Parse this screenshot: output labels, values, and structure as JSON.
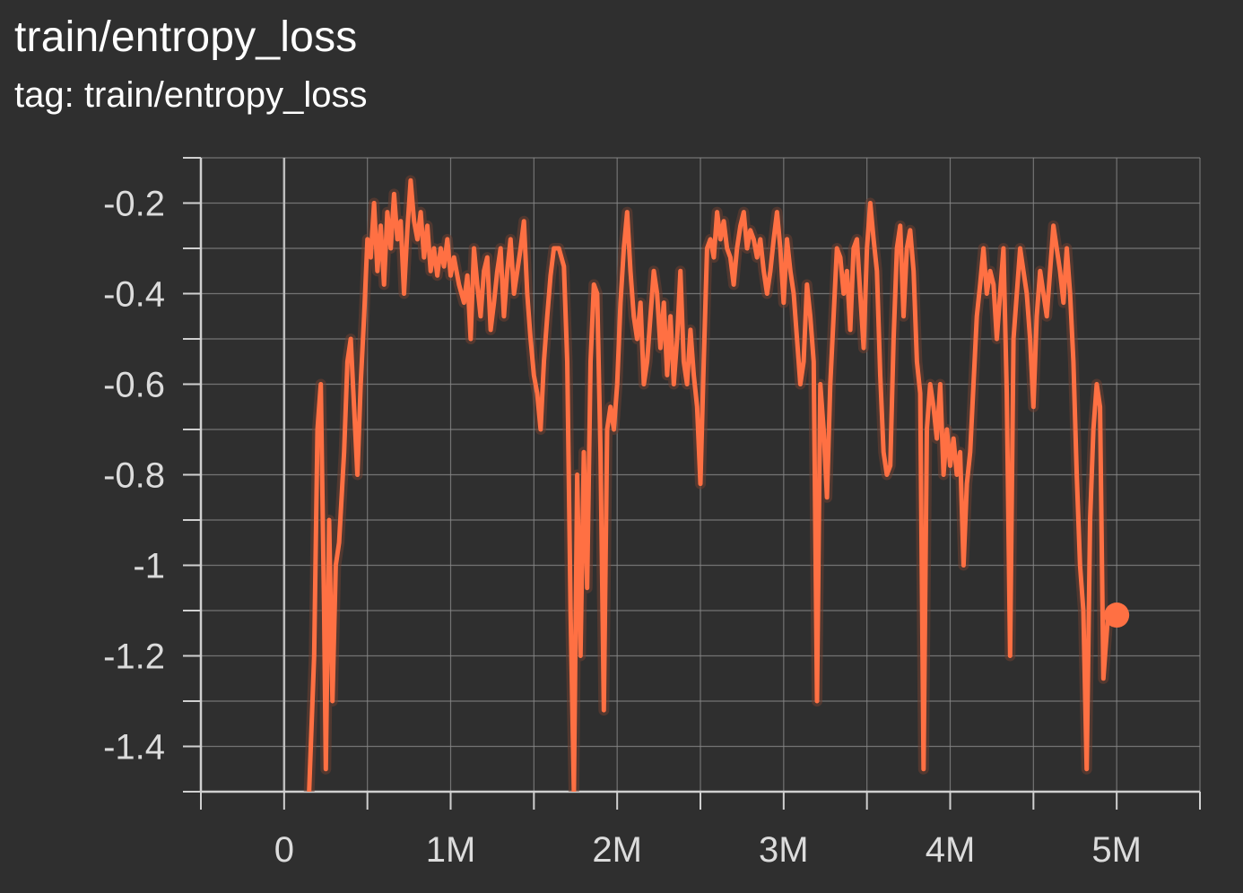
{
  "header": {
    "title": "train/entropy_loss",
    "subtitle": "tag: train/entropy_loss"
  },
  "colors": {
    "background": "#2f2f2f",
    "grid": "#8a8a8a",
    "axis": "#d0d0d0",
    "series": "#ff7043",
    "series_raw": "#6e3f32"
  },
  "chart_data": {
    "type": "line",
    "title": "train/entropy_loss",
    "xlabel": "",
    "ylabel": "",
    "xlim": [
      -500000,
      5500000
    ],
    "ylim": [
      -1.5,
      -0.1
    ],
    "grid": true,
    "x_ticks": [
      0,
      1000000,
      2000000,
      3000000,
      4000000,
      5000000
    ],
    "x_tick_labels": [
      "0",
      "1M",
      "2M",
      "3M",
      "4M",
      "5M"
    ],
    "y_ticks": [
      -0.2,
      -0.4,
      -0.6,
      -0.8,
      -1.0,
      -1.2,
      -1.4
    ],
    "y_tick_labels": [
      "-0.2",
      "-0.4",
      "-0.6",
      "-0.8",
      "-1",
      "-1.2",
      "-1.4"
    ],
    "series": [
      {
        "points": [
          [
            150000,
            -1.5
          ],
          [
            180000,
            -1.2
          ],
          [
            200000,
            -0.7
          ],
          [
            220000,
            -0.6
          ],
          [
            240000,
            -1.1
          ],
          [
            250000,
            -1.45
          ],
          [
            270000,
            -0.9
          ],
          [
            290000,
            -1.3
          ],
          [
            310000,
            -1.0
          ],
          [
            330000,
            -0.95
          ],
          [
            360000,
            -0.75
          ],
          [
            380000,
            -0.55
          ],
          [
            400000,
            -0.5
          ],
          [
            420000,
            -0.65
          ],
          [
            440000,
            -0.8
          ],
          [
            460000,
            -0.6
          ],
          [
            480000,
            -0.45
          ],
          [
            500000,
            -0.28
          ],
          [
            520000,
            -0.32
          ],
          [
            540000,
            -0.2
          ],
          [
            560000,
            -0.35
          ],
          [
            580000,
            -0.25
          ],
          [
            600000,
            -0.38
          ],
          [
            620000,
            -0.22
          ],
          [
            640000,
            -0.3
          ],
          [
            660000,
            -0.18
          ],
          [
            680000,
            -0.28
          ],
          [
            700000,
            -0.24
          ],
          [
            720000,
            -0.4
          ],
          [
            740000,
            -0.26
          ],
          [
            760000,
            -0.15
          ],
          [
            780000,
            -0.24
          ],
          [
            800000,
            -0.28
          ],
          [
            820000,
            -0.22
          ],
          [
            840000,
            -0.32
          ],
          [
            860000,
            -0.25
          ],
          [
            880000,
            -0.35
          ],
          [
            900000,
            -0.3
          ],
          [
            920000,
            -0.36
          ],
          [
            940000,
            -0.3
          ],
          [
            960000,
            -0.34
          ],
          [
            980000,
            -0.28
          ],
          [
            1000000,
            -0.36
          ],
          [
            1020000,
            -0.32
          ],
          [
            1050000,
            -0.38
          ],
          [
            1080000,
            -0.42
          ],
          [
            1100000,
            -0.36
          ],
          [
            1120000,
            -0.5
          ],
          [
            1140000,
            -0.3
          ],
          [
            1160000,
            -0.38
          ],
          [
            1180000,
            -0.45
          ],
          [
            1200000,
            -0.35
          ],
          [
            1220000,
            -0.32
          ],
          [
            1240000,
            -0.48
          ],
          [
            1260000,
            -0.42
          ],
          [
            1280000,
            -0.35
          ],
          [
            1300000,
            -0.3
          ],
          [
            1320000,
            -0.45
          ],
          [
            1340000,
            -0.35
          ],
          [
            1360000,
            -0.28
          ],
          [
            1380000,
            -0.4
          ],
          [
            1400000,
            -0.35
          ],
          [
            1420000,
            -0.3
          ],
          [
            1440000,
            -0.24
          ],
          [
            1460000,
            -0.4
          ],
          [
            1480000,
            -0.5
          ],
          [
            1500000,
            -0.58
          ],
          [
            1520000,
            -0.62
          ],
          [
            1540000,
            -0.7
          ],
          [
            1560000,
            -0.55
          ],
          [
            1580000,
            -0.45
          ],
          [
            1600000,
            -0.36
          ],
          [
            1620000,
            -0.3
          ],
          [
            1650000,
            -0.3
          ],
          [
            1680000,
            -0.34
          ],
          [
            1700000,
            -0.55
          ],
          [
            1720000,
            -1.1
          ],
          [
            1740000,
            -1.5
          ],
          [
            1760000,
            -0.8
          ],
          [
            1780000,
            -1.2
          ],
          [
            1800000,
            -0.75
          ],
          [
            1820000,
            -1.05
          ],
          [
            1840000,
            -0.55
          ],
          [
            1860000,
            -0.38
          ],
          [
            1880000,
            -0.4
          ],
          [
            1900000,
            -0.75
          ],
          [
            1920000,
            -1.32
          ],
          [
            1940000,
            -0.7
          ],
          [
            1960000,
            -0.65
          ],
          [
            1980000,
            -0.7
          ],
          [
            2000000,
            -0.6
          ],
          [
            2020000,
            -0.42
          ],
          [
            2040000,
            -0.3
          ],
          [
            2060000,
            -0.22
          ],
          [
            2080000,
            -0.35
          ],
          [
            2100000,
            -0.45
          ],
          [
            2120000,
            -0.5
          ],
          [
            2140000,
            -0.42
          ],
          [
            2160000,
            -0.6
          ],
          [
            2180000,
            -0.55
          ],
          [
            2200000,
            -0.45
          ],
          [
            2220000,
            -0.35
          ],
          [
            2240000,
            -0.4
          ],
          [
            2260000,
            -0.52
          ],
          [
            2280000,
            -0.42
          ],
          [
            2300000,
            -0.58
          ],
          [
            2320000,
            -0.45
          ],
          [
            2340000,
            -0.6
          ],
          [
            2360000,
            -0.5
          ],
          [
            2380000,
            -0.35
          ],
          [
            2400000,
            -0.55
          ],
          [
            2420000,
            -0.6
          ],
          [
            2440000,
            -0.48
          ],
          [
            2460000,
            -0.58
          ],
          [
            2480000,
            -0.65
          ],
          [
            2500000,
            -0.82
          ],
          [
            2520000,
            -0.55
          ],
          [
            2540000,
            -0.3
          ],
          [
            2560000,
            -0.28
          ],
          [
            2580000,
            -0.32
          ],
          [
            2600000,
            -0.22
          ],
          [
            2620000,
            -0.28
          ],
          [
            2640000,
            -0.24
          ],
          [
            2660000,
            -0.3
          ],
          [
            2680000,
            -0.32
          ],
          [
            2700000,
            -0.38
          ],
          [
            2720000,
            -0.3
          ],
          [
            2740000,
            -0.25
          ],
          [
            2760000,
            -0.22
          ],
          [
            2780000,
            -0.3
          ],
          [
            2800000,
            -0.26
          ],
          [
            2820000,
            -0.28
          ],
          [
            2840000,
            -0.32
          ],
          [
            2860000,
            -0.28
          ],
          [
            2880000,
            -0.35
          ],
          [
            2900000,
            -0.4
          ],
          [
            2920000,
            -0.35
          ],
          [
            2940000,
            -0.28
          ],
          [
            2960000,
            -0.22
          ],
          [
            2980000,
            -0.3
          ],
          [
            3000000,
            -0.42
          ],
          [
            3020000,
            -0.28
          ],
          [
            3040000,
            -0.35
          ],
          [
            3060000,
            -0.4
          ],
          [
            3080000,
            -0.5
          ],
          [
            3100000,
            -0.6
          ],
          [
            3120000,
            -0.55
          ],
          [
            3140000,
            -0.38
          ],
          [
            3160000,
            -0.45
          ],
          [
            3180000,
            -0.55
          ],
          [
            3200000,
            -1.3
          ],
          [
            3220000,
            -0.6
          ],
          [
            3240000,
            -0.7
          ],
          [
            3260000,
            -0.85
          ],
          [
            3280000,
            -0.6
          ],
          [
            3300000,
            -0.45
          ],
          [
            3320000,
            -0.3
          ],
          [
            3340000,
            -0.32
          ],
          [
            3360000,
            -0.4
          ],
          [
            3380000,
            -0.35
          ],
          [
            3400000,
            -0.48
          ],
          [
            3420000,
            -0.3
          ],
          [
            3440000,
            -0.28
          ],
          [
            3460000,
            -0.4
          ],
          [
            3480000,
            -0.52
          ],
          [
            3500000,
            -0.3
          ],
          [
            3520000,
            -0.2
          ],
          [
            3540000,
            -0.28
          ],
          [
            3560000,
            -0.35
          ],
          [
            3580000,
            -0.58
          ],
          [
            3600000,
            -0.75
          ],
          [
            3620000,
            -0.8
          ],
          [
            3640000,
            -0.78
          ],
          [
            3660000,
            -0.5
          ],
          [
            3680000,
            -0.3
          ],
          [
            3700000,
            -0.25
          ],
          [
            3720000,
            -0.45
          ],
          [
            3740000,
            -0.3
          ],
          [
            3760000,
            -0.26
          ],
          [
            3780000,
            -0.35
          ],
          [
            3800000,
            -0.55
          ],
          [
            3820000,
            -0.62
          ],
          [
            3840000,
            -1.45
          ],
          [
            3860000,
            -0.7
          ],
          [
            3880000,
            -0.6
          ],
          [
            3900000,
            -0.65
          ],
          [
            3920000,
            -0.72
          ],
          [
            3940000,
            -0.6
          ],
          [
            3960000,
            -0.8
          ],
          [
            3980000,
            -0.7
          ],
          [
            4000000,
            -0.78
          ],
          [
            4020000,
            -0.72
          ],
          [
            4040000,
            -0.8
          ],
          [
            4060000,
            -0.75
          ],
          [
            4080000,
            -1.0
          ],
          [
            4100000,
            -0.82
          ],
          [
            4120000,
            -0.75
          ],
          [
            4140000,
            -0.6
          ],
          [
            4160000,
            -0.45
          ],
          [
            4180000,
            -0.38
          ],
          [
            4200000,
            -0.3
          ],
          [
            4220000,
            -0.4
          ],
          [
            4240000,
            -0.35
          ],
          [
            4260000,
            -0.38
          ],
          [
            4280000,
            -0.5
          ],
          [
            4300000,
            -0.4
          ],
          [
            4320000,
            -0.3
          ],
          [
            4340000,
            -0.62
          ],
          [
            4360000,
            -1.2
          ],
          [
            4380000,
            -0.5
          ],
          [
            4400000,
            -0.4
          ],
          [
            4420000,
            -0.3
          ],
          [
            4440000,
            -0.35
          ],
          [
            4460000,
            -0.4
          ],
          [
            4480000,
            -0.5
          ],
          [
            4500000,
            -0.65
          ],
          [
            4520000,
            -0.45
          ],
          [
            4540000,
            -0.35
          ],
          [
            4560000,
            -0.4
          ],
          [
            4580000,
            -0.45
          ],
          [
            4600000,
            -0.35
          ],
          [
            4620000,
            -0.25
          ],
          [
            4640000,
            -0.3
          ],
          [
            4660000,
            -0.35
          ],
          [
            4680000,
            -0.42
          ],
          [
            4700000,
            -0.3
          ],
          [
            4720000,
            -0.4
          ],
          [
            4740000,
            -0.55
          ],
          [
            4760000,
            -0.8
          ],
          [
            4780000,
            -1.0
          ],
          [
            4800000,
            -1.1
          ],
          [
            4820000,
            -1.45
          ],
          [
            4840000,
            -0.9
          ],
          [
            4860000,
            -0.7
          ],
          [
            4880000,
            -0.6
          ],
          [
            4900000,
            -0.65
          ],
          [
            4920000,
            -1.25
          ],
          [
            4950000,
            -1.1
          ],
          [
            5000000,
            -1.11
          ]
        ]
      }
    ]
  }
}
